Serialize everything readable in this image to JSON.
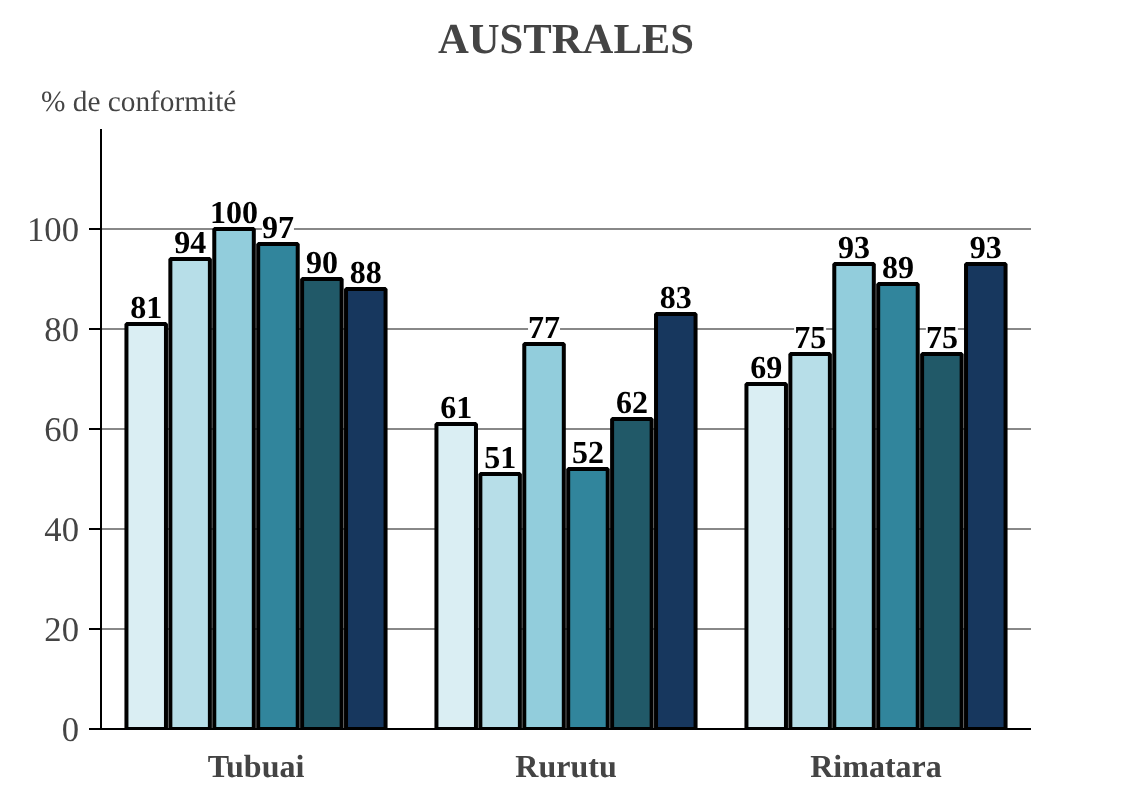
{
  "chart_data": {
    "type": "bar",
    "title": "AUSTRALES",
    "ylabel": "% de conformité",
    "categories": [
      "Tubuai",
      "Rurutu",
      "Rimatara"
    ],
    "series": [
      {
        "color": "#daeef3",
        "values": [
          81,
          61,
          69
        ]
      },
      {
        "color": "#b7dee8",
        "values": [
          94,
          51,
          75
        ]
      },
      {
        "color": "#92cddc",
        "values": [
          100,
          77,
          93
        ]
      },
      {
        "color": "#31859c",
        "values": [
          97,
          52,
          89
        ]
      },
      {
        "color": "#215968",
        "values": [
          90,
          62,
          75
        ]
      },
      {
        "color": "#17375e",
        "values": [
          88,
          83,
          93
        ]
      }
    ],
    "ylim": [
      0,
      120
    ],
    "yticks": [
      0,
      20,
      40,
      60,
      80,
      100
    ],
    "grid": "y",
    "data_labels": true
  }
}
